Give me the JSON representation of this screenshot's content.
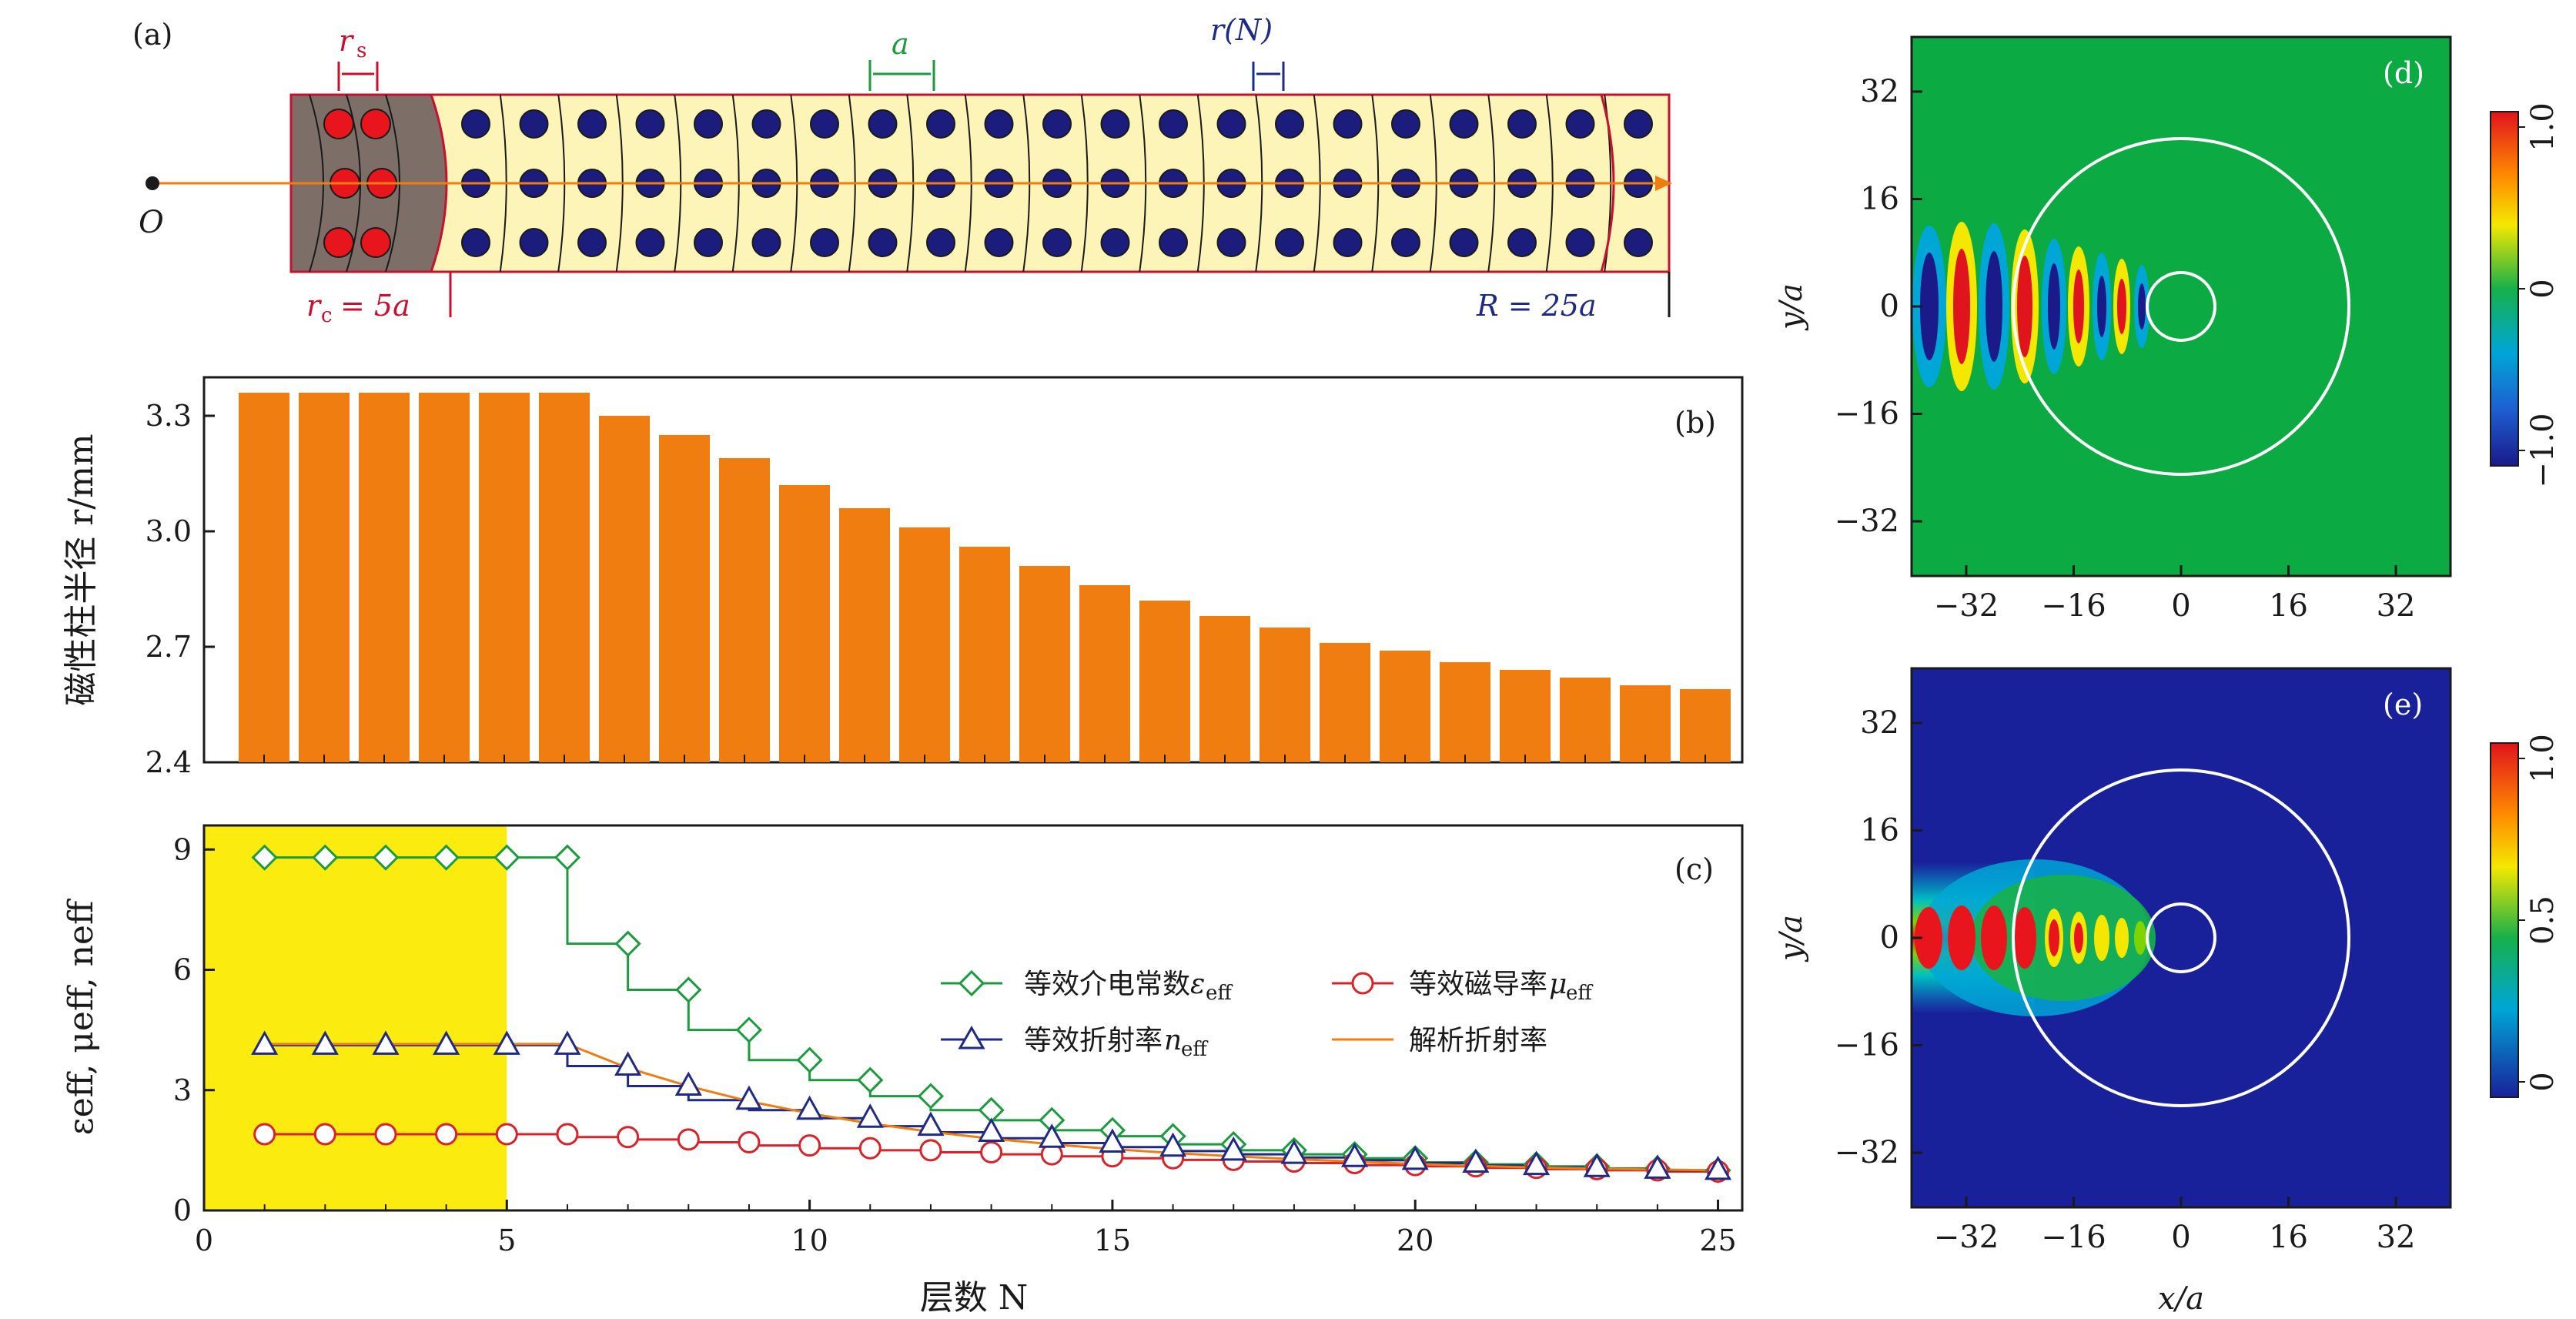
{
  "colors": {
    "bar": "#ef7d0f",
    "green": "#1a9b3c",
    "navy": "#1f2a86",
    "red": "#d8232a",
    "orange_line": "#ef7d0f",
    "yellow_fill": "#fbeb0e",
    "cream": "#fdf5b8",
    "grey": "#7d6e68",
    "dot_navy": "#1c1c7c",
    "dot_red": "#e8151c",
    "map_green": "#0caa43",
    "map_navy": "#19219a"
  },
  "panel_a": {
    "label": "(a)",
    "origin_label": "O",
    "rs_label": "r",
    "rs_sub": "s",
    "a_label": "a",
    "rN_label": "r(N)",
    "rc_label": "r",
    "rc_sub": "c",
    "rc_eq": "= 5a",
    "R_label": "R = 25a",
    "inner_layers": 2,
    "outer_columns": 21,
    "rows": 3
  },
  "panel_d": {
    "label": "(d)",
    "colorbar_ticks": [
      "1.0",
      "0",
      "−1.0"
    ],
    "y_ticks": [
      "32",
      "16",
      "0",
      "−16",
      "−32"
    ],
    "x_ticks": [
      "−32",
      "−16",
      "0",
      "16",
      "32"
    ],
    "ylabel": "y/a"
  },
  "panel_e": {
    "label": "(e)",
    "colorbar_ticks": [
      "1.0",
      "0.5",
      "0"
    ],
    "y_ticks": [
      "32",
      "16",
      "0",
      "−16",
      "−32"
    ],
    "x_ticks": [
      "−32",
      "−16",
      "0",
      "16",
      "32"
    ],
    "ylabel": "y/a",
    "xlabel": "x/a"
  },
  "chart_data": [
    {
      "id": "b",
      "type": "bar",
      "label": "(b)",
      "ylabel": "磁性柱半径 r/mm",
      "ylim": [
        2.4,
        3.4
      ],
      "y_ticks": [
        "2.4",
        "2.7",
        "3.0",
        "3.3"
      ],
      "y_tick_values": [
        2.4,
        2.7,
        3.0,
        3.3
      ],
      "categories": [
        1,
        2,
        3,
        4,
        5,
        6,
        7,
        8,
        9,
        10,
        11,
        12,
        13,
        14,
        15,
        16,
        17,
        18,
        19,
        20,
        21,
        22,
        23,
        24,
        25
      ],
      "values": [
        3.36,
        3.36,
        3.36,
        3.36,
        3.36,
        3.36,
        3.3,
        3.25,
        3.19,
        3.12,
        3.06,
        3.01,
        2.96,
        2.91,
        2.86,
        2.82,
        2.78,
        2.75,
        2.71,
        2.69,
        2.66,
        2.64,
        2.62,
        2.6,
        2.59
      ]
    },
    {
      "id": "c",
      "type": "line",
      "label": "(c)",
      "xlabel": "层数 N",
      "ylabel": "εeff, μeff, neff",
      "xlim": [
        0,
        25.4
      ],
      "ylim": [
        0,
        9.6
      ],
      "x_ticks": [
        "0",
        "5",
        "10",
        "15",
        "20",
        "25"
      ],
      "x_tick_values": [
        0,
        5,
        10,
        15,
        20,
        25
      ],
      "y_ticks": [
        "0",
        "3",
        "6",
        "9"
      ],
      "y_tick_values": [
        0,
        3,
        6,
        9
      ],
      "highlight_region": [
        0,
        5
      ],
      "x": [
        1,
        2,
        3,
        4,
        5,
        6,
        7,
        8,
        9,
        10,
        11,
        12,
        13,
        14,
        15,
        16,
        17,
        18,
        19,
        20,
        21,
        22,
        23,
        24,
        25
      ],
      "series": [
        {
          "name": "等效介电常数",
          "sym": "ε",
          "sub": "eff",
          "marker": "diamond",
          "color": "green",
          "step": true,
          "values": [
            8.8,
            8.8,
            8.8,
            8.8,
            8.8,
            8.8,
            6.65,
            5.5,
            4.5,
            3.75,
            3.25,
            2.85,
            2.5,
            2.25,
            2.0,
            1.85,
            1.65,
            1.5,
            1.4,
            1.3,
            1.2,
            1.15,
            1.1,
            1.05,
            1.0
          ]
        },
        {
          "name": "等效磁导率",
          "sym": "μ",
          "sub": "eff",
          "marker": "circle",
          "color": "red",
          "step": true,
          "values": [
            1.9,
            1.9,
            1.9,
            1.9,
            1.9,
            1.9,
            1.83,
            1.77,
            1.7,
            1.62,
            1.55,
            1.5,
            1.45,
            1.4,
            1.35,
            1.3,
            1.26,
            1.22,
            1.18,
            1.13,
            1.1,
            1.06,
            1.03,
            1.0,
            0.97
          ]
        },
        {
          "name": "等效折射率",
          "sym": "n",
          "sub": "eff",
          "marker": "triangle",
          "color": "navy",
          "step": true,
          "values": [
            4.12,
            4.12,
            4.12,
            4.12,
            4.12,
            4.12,
            3.6,
            3.1,
            2.75,
            2.5,
            2.3,
            2.1,
            1.95,
            1.8,
            1.68,
            1.58,
            1.48,
            1.4,
            1.32,
            1.25,
            1.18,
            1.12,
            1.07,
            1.03,
            1.0
          ]
        },
        {
          "name": "解析折射率",
          "sym": "",
          "sub": "",
          "marker": "none",
          "color": "orange_line",
          "step": false,
          "values": [
            4.15,
            4.15,
            4.15,
            4.15,
            4.15,
            4.15,
            3.55,
            3.1,
            2.72,
            2.42,
            2.17,
            1.96,
            1.79,
            1.65,
            1.53,
            1.43,
            1.35,
            1.28,
            1.22,
            1.16,
            1.11,
            1.07,
            1.04,
            1.02,
            1.0
          ]
        }
      ]
    }
  ]
}
